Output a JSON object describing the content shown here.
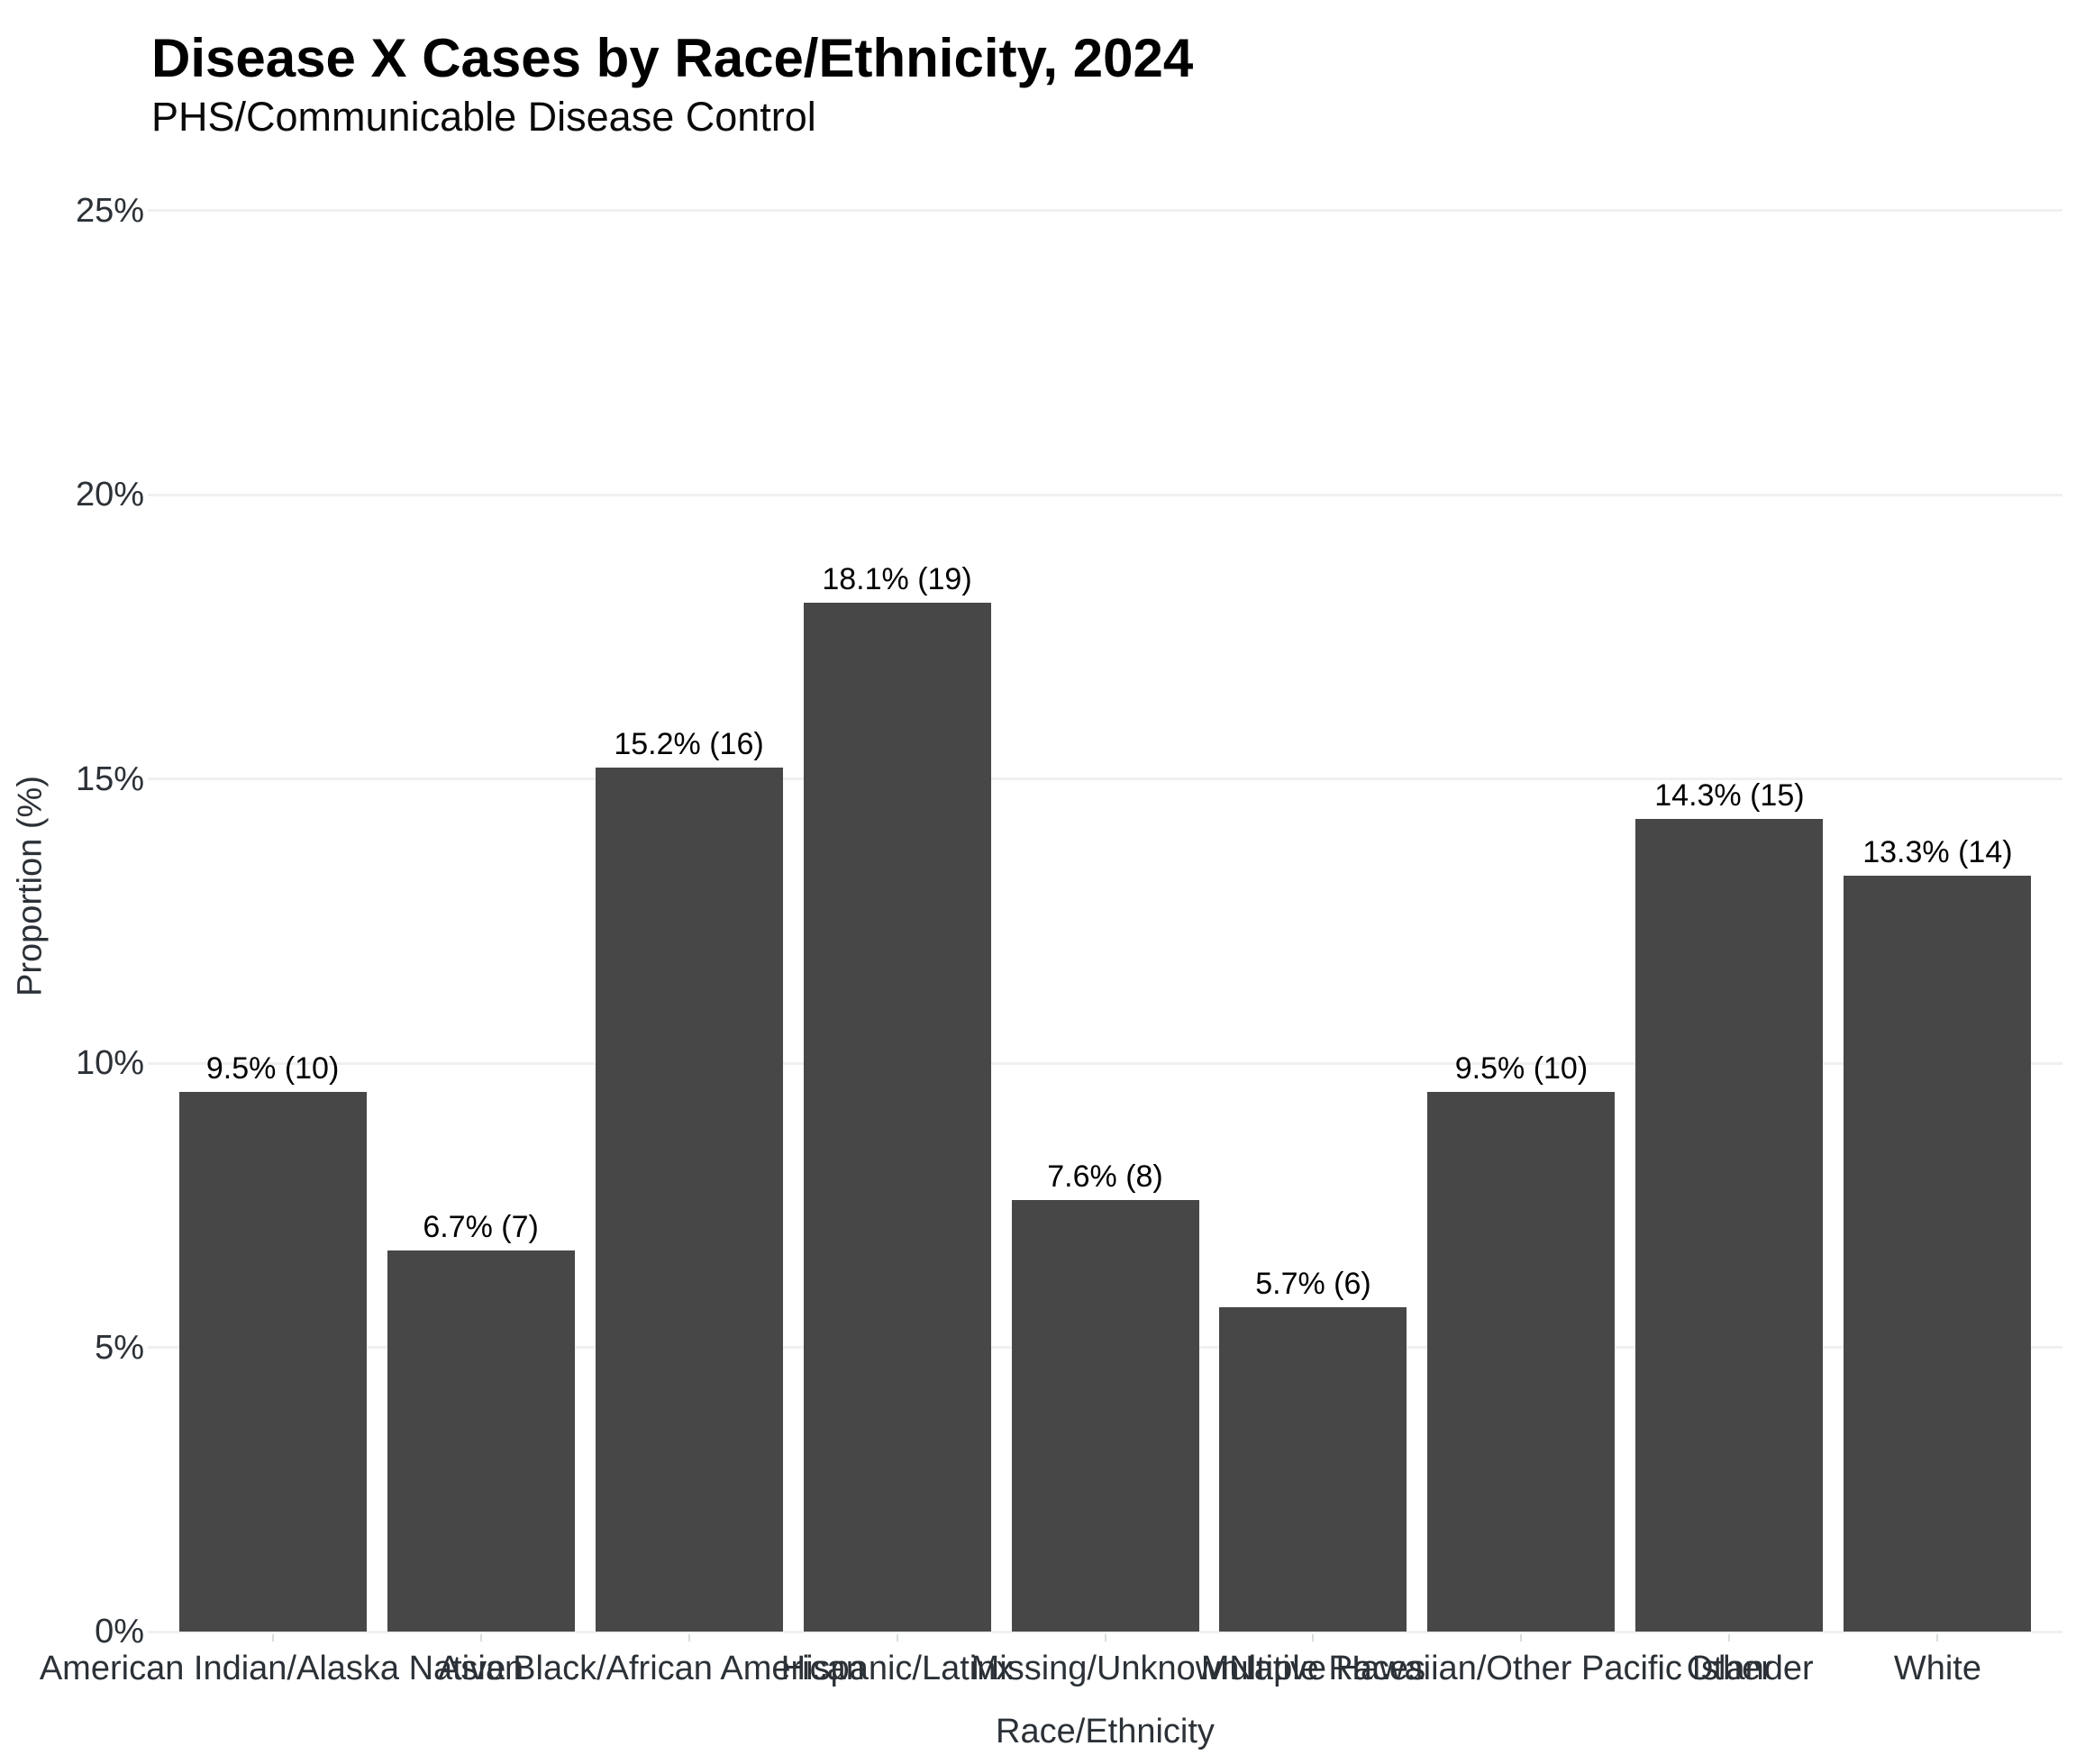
{
  "chart_data": {
    "type": "bar",
    "title": "Disease X Cases by Race/Ethnicity, 2024",
    "subtitle": "PHS/Communicable Disease Control",
    "xlabel": "Race/Ethnicity",
    "ylabel": "Proportion (%)",
    "categories": [
      "American Indian/Alaska Native",
      "Asian",
      "Black/African American",
      "Hispanic/Latinx",
      "Missing/Unknown",
      "Multiple Races",
      "Native Hawaiian/Other Pacific Islander",
      "Other",
      "White"
    ],
    "values_pct": [
      9.5,
      6.7,
      15.2,
      18.1,
      7.6,
      5.7,
      9.5,
      14.3,
      13.3
    ],
    "counts": [
      10,
      7,
      16,
      19,
      8,
      6,
      10,
      15,
      14
    ],
    "bar_labels": [
      "9.5% (10)",
      "6.7% (7)",
      "15.2% (16)",
      "18.1% (19)",
      "7.6% (8)",
      "5.7% (6)",
      "9.5% (10)",
      "14.3% (15)",
      "13.3% (14)"
    ],
    "y_ticks": [
      {
        "value": 0,
        "label": "0%"
      },
      {
        "value": 5,
        "label": "5%"
      },
      {
        "value": 10,
        "label": "10%"
      },
      {
        "value": 15,
        "label": "15%"
      },
      {
        "value": 20,
        "label": "20%"
      },
      {
        "value": 25,
        "label": "25%"
      }
    ],
    "ylim": [
      0,
      26.25
    ],
    "grid": "horizontal-major-only",
    "legend": "none",
    "colors": {
      "bar": "#474747",
      "gridline": "#eff1f1",
      "axis_text": "#2b3137",
      "label_text": "#000000",
      "background": "#ffffff"
    }
  }
}
